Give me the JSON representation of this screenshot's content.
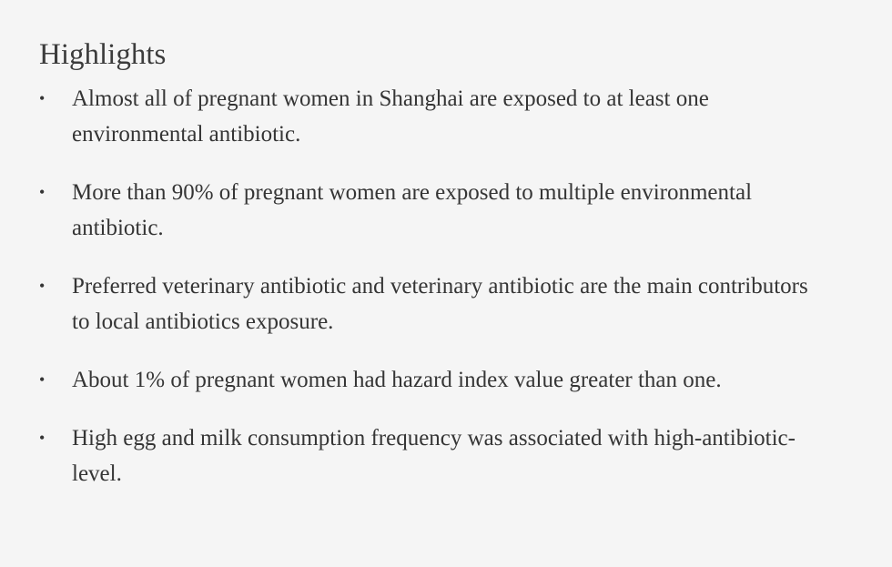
{
  "highlights": {
    "title": "Highlights",
    "bullet_char": "•",
    "items": [
      {
        "text": "Almost all of pregnant women in Shanghai are exposed to at least one environmental antibiotic."
      },
      {
        "text": "More than 90% of pregnant women are exposed to multiple environmental antibiotic."
      },
      {
        "text": "Preferred veterinary antibiotic and veterinary antibiotic are the main contributors to local antibiotics exposure."
      },
      {
        "text": "About 1% of pregnant women had hazard index value greater than one."
      },
      {
        "text": "High egg and milk consumption frequency was associated with high-antibiotic-level."
      }
    ]
  }
}
